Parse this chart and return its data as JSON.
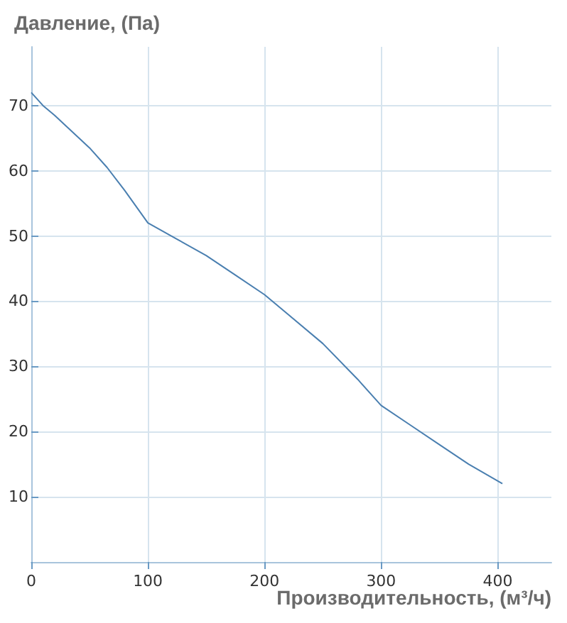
{
  "chart_data": {
    "type": "line",
    "ylabel": "Давление, (Па)",
    "xlabel": "Производительность, (м³/ч)",
    "x": [
      0,
      10,
      20,
      35,
      50,
      65,
      80,
      100,
      125,
      150,
      175,
      200,
      220,
      250,
      280,
      300,
      325,
      350,
      375,
      404
    ],
    "series": [
      {
        "color": "#4a7fb0",
        "values": [
          72,
          70,
          68.5,
          66,
          63.5,
          60.5,
          57,
          52,
          49.5,
          47,
          44,
          41,
          38,
          33.5,
          28,
          24,
          21,
          18,
          15,
          12
        ]
      }
    ],
    "xlim": [
      0,
      446
    ],
    "xticks": [
      0,
      100,
      200,
      300,
      400
    ],
    "ylim": [
      0,
      79
    ],
    "yticks": [
      10,
      20,
      30,
      40,
      50,
      60,
      70
    ],
    "grid": true,
    "marker": "none",
    "line_style": "solid"
  }
}
